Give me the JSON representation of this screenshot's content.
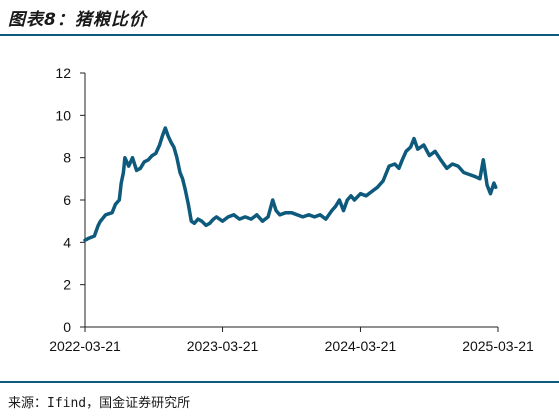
{
  "header": {
    "title": "图表8：猪粮比价"
  },
  "footer": {
    "source": "来源：Ifind，国金证券研究所"
  },
  "colors": {
    "line": "#0e5a7d",
    "rule": "#0e5a7d",
    "axis": "#222222"
  },
  "chart_data": {
    "type": "line",
    "title": "",
    "xlabel": "",
    "ylabel": "",
    "ylim": [
      0,
      12
    ],
    "yticks": [
      0,
      2,
      4,
      6,
      8,
      10,
      12
    ],
    "xlim": [
      "2022-03-21",
      "2025-03-21"
    ],
    "xticks": [
      "2022-03-21",
      "2023-03-21",
      "2024-03-21",
      "2025-03-21"
    ],
    "grid": false,
    "legend": "none",
    "series": [
      {
        "x": [
          "2022-03-21",
          "2022-04-01",
          "2022-04-15",
          "2022-04-25",
          "2022-05-01",
          "2022-05-15",
          "2022-06-01",
          "2022-06-10",
          "2022-06-20",
          "2022-06-25",
          "2022-07-01",
          "2022-07-05",
          "2022-07-15",
          "2022-07-25",
          "2022-08-05",
          "2022-08-15",
          "2022-08-25",
          "2022-09-05",
          "2022-09-15",
          "2022-09-25",
          "2022-10-05",
          "2022-10-12",
          "2022-10-20",
          "2022-10-28",
          "2022-11-05",
          "2022-11-12",
          "2022-11-20",
          "2022-11-28",
          "2022-12-05",
          "2022-12-12",
          "2022-12-20",
          "2022-12-28",
          "2023-01-05",
          "2023-01-15",
          "2023-01-25",
          "2023-02-05",
          "2023-02-15",
          "2023-02-25",
          "2023-03-05",
          "2023-03-21",
          "2023-04-05",
          "2023-04-20",
          "2023-05-05",
          "2023-05-20",
          "2023-06-05",
          "2023-06-20",
          "2023-07-05",
          "2023-07-20",
          "2023-08-01",
          "2023-08-10",
          "2023-08-20",
          "2023-09-05",
          "2023-09-20",
          "2023-10-05",
          "2023-10-20",
          "2023-11-05",
          "2023-11-20",
          "2023-12-05",
          "2023-12-20",
          "2024-01-05",
          "2024-01-15",
          "2024-01-25",
          "2024-02-05",
          "2024-02-15",
          "2024-02-25",
          "2024-03-05",
          "2024-03-21",
          "2024-04-05",
          "2024-04-20",
          "2024-05-05",
          "2024-05-20",
          "2024-06-05",
          "2024-06-20",
          "2024-07-01",
          "2024-07-10",
          "2024-07-20",
          "2024-08-01",
          "2024-08-10",
          "2024-08-20",
          "2024-09-05",
          "2024-09-20",
          "2024-10-05",
          "2024-10-20",
          "2024-11-05",
          "2024-11-20",
          "2024-12-05",
          "2024-12-20",
          "2025-01-05",
          "2025-01-20",
          "2025-02-01",
          "2025-02-10",
          "2025-02-20",
          "2025-03-01",
          "2025-03-10",
          "2025-03-15"
        ],
        "values": [
          4.1,
          4.2,
          4.3,
          4.8,
          5.0,
          5.3,
          5.4,
          5.8,
          6.0,
          6.8,
          7.3,
          8.0,
          7.6,
          8.0,
          7.4,
          7.5,
          7.8,
          7.9,
          8.1,
          8.2,
          8.6,
          9.0,
          9.4,
          9.0,
          8.7,
          8.5,
          8.0,
          7.3,
          7.0,
          6.5,
          5.8,
          5.0,
          4.9,
          5.1,
          5.0,
          4.8,
          4.9,
          5.1,
          5.2,
          5.0,
          5.2,
          5.3,
          5.1,
          5.2,
          5.1,
          5.3,
          5.0,
          5.2,
          6.0,
          5.5,
          5.3,
          5.4,
          5.4,
          5.3,
          5.2,
          5.3,
          5.2,
          5.3,
          5.1,
          5.5,
          5.7,
          6.0,
          5.5,
          6.0,
          6.2,
          6.0,
          6.3,
          6.2,
          6.4,
          6.6,
          6.9,
          7.6,
          7.7,
          7.5,
          7.9,
          8.3,
          8.5,
          8.9,
          8.4,
          8.6,
          8.1,
          8.3,
          7.9,
          7.5,
          7.7,
          7.6,
          7.3,
          7.2,
          7.1,
          7.0,
          7.9,
          6.7,
          6.3,
          6.8,
          6.6
        ]
      }
    ]
  }
}
